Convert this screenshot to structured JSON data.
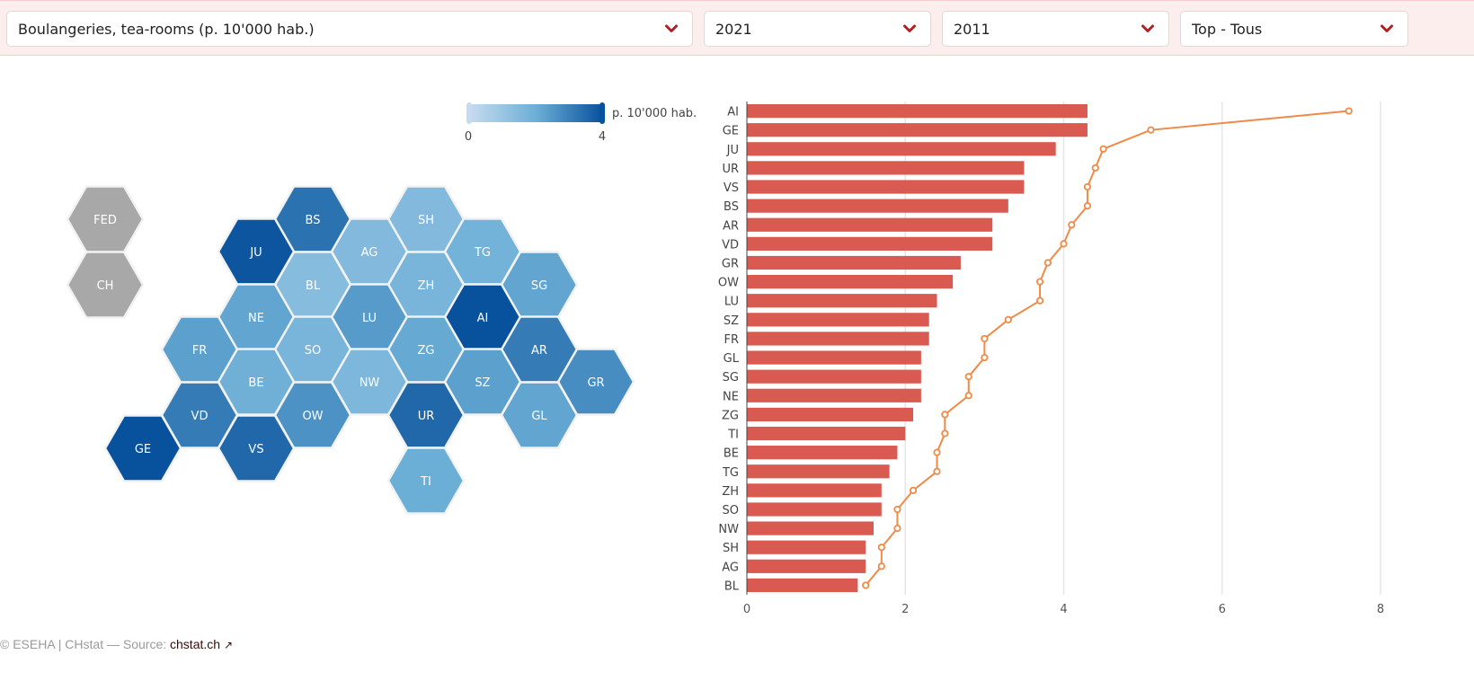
{
  "filters": {
    "indicator": "Boulangeries, tea-rooms (p. 10'000 hab.)",
    "year_a": "2021",
    "year_b": "2011",
    "ranking": "Top - Tous"
  },
  "legend": {
    "unit_label": "p. 10'000 hab.",
    "min_label": "0",
    "max_label": "4",
    "min_value": 0,
    "max_value": 4,
    "color_low": "#c6dbef",
    "color_high": "#08519c"
  },
  "map": {
    "extra_cells": [
      {
        "code": "FED",
        "color": "#a8a8a8"
      },
      {
        "code": "CH",
        "color": "#a8a8a8"
      }
    ],
    "cells": [
      {
        "code": "BS",
        "value": 3.3
      },
      {
        "code": "SH",
        "value": 1.5
      },
      {
        "code": "JU",
        "value": 3.9
      },
      {
        "code": "AG",
        "value": 1.5
      },
      {
        "code": "TG",
        "value": 1.8
      },
      {
        "code": "BL",
        "value": 1.4
      },
      {
        "code": "ZH",
        "value": 1.7
      },
      {
        "code": "SG",
        "value": 2.2
      },
      {
        "code": "NE",
        "value": 2.2
      },
      {
        "code": "LU",
        "value": 2.4
      },
      {
        "code": "AI",
        "value": 4.3
      },
      {
        "code": "FR",
        "value": 2.3
      },
      {
        "code": "SO",
        "value": 1.7
      },
      {
        "code": "ZG",
        "value": 2.1
      },
      {
        "code": "AR",
        "value": 3.1
      },
      {
        "code": "BE",
        "value": 1.9
      },
      {
        "code": "NW",
        "value": 1.6
      },
      {
        "code": "SZ",
        "value": 2.3
      },
      {
        "code": "GR",
        "value": 2.7
      },
      {
        "code": "VD",
        "value": 3.1
      },
      {
        "code": "OW",
        "value": 2.6
      },
      {
        "code": "UR",
        "value": 3.5
      },
      {
        "code": "GL",
        "value": 2.2
      },
      {
        "code": "GE",
        "value": 4.3
      },
      {
        "code": "VS",
        "value": 3.5
      },
      {
        "code": "TI",
        "value": 2.0
      }
    ]
  },
  "chart_data": {
    "type": "bar",
    "orientation": "horizontal",
    "title": "Boulangeries, tea-rooms (p. 10'000 hab.)",
    "xlabel": "",
    "ylabel": "",
    "xlim": [
      0,
      8
    ],
    "x_ticks": [
      "0",
      "2",
      "4",
      "6",
      "8"
    ],
    "grid": true,
    "categories": [
      "AI",
      "GE",
      "JU",
      "UR",
      "VS",
      "BS",
      "AR",
      "VD",
      "GR",
      "OW",
      "LU",
      "SZ",
      "FR",
      "GL",
      "SG",
      "NE",
      "ZG",
      "TI",
      "BE",
      "TG",
      "ZH",
      "SO",
      "NW",
      "SH",
      "AG",
      "BL"
    ],
    "series": [
      {
        "name": "2021",
        "type": "bar",
        "color": "#d95a50",
        "values": [
          4.3,
          4.3,
          3.9,
          3.5,
          3.5,
          3.3,
          3.1,
          3.1,
          2.7,
          2.6,
          2.4,
          2.3,
          2.3,
          2.2,
          2.2,
          2.2,
          2.1,
          2.0,
          1.9,
          1.8,
          1.7,
          1.7,
          1.6,
          1.5,
          1.5,
          1.4
        ]
      },
      {
        "name": "2011",
        "type": "line",
        "color": "#ef8a47",
        "values": [
          7.6,
          5.1,
          4.5,
          4.4,
          4.3,
          4.3,
          4.1,
          4.0,
          3.8,
          3.7,
          3.7,
          3.3,
          3.0,
          3.0,
          2.8,
          2.8,
          2.5,
          2.5,
          2.4,
          2.4,
          2.1,
          1.9,
          1.9,
          1.7,
          1.7,
          1.5
        ]
      }
    ]
  },
  "footer": {
    "credit": "© ESEHA | CHstat — Source: ",
    "source_link": "chstat.ch",
    "link_icon": "↗"
  }
}
